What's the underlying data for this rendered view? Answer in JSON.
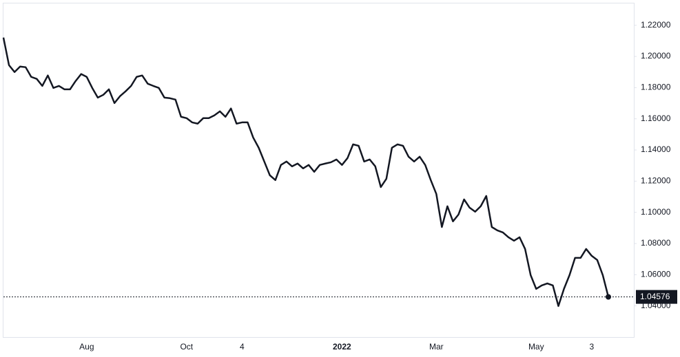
{
  "chart_data": {
    "type": "line",
    "categories": [
      null,
      null,
      null,
      null,
      null,
      null,
      null,
      null,
      null,
      null,
      null,
      null,
      null,
      null,
      null,
      "Aug",
      null,
      null,
      null,
      null,
      null,
      null,
      null,
      null,
      null,
      null,
      null,
      null,
      null,
      null,
      null,
      null,
      null,
      "Oct",
      null,
      null,
      null,
      null,
      null,
      null,
      null,
      null,
      null,
      "4",
      null,
      null,
      null,
      null,
      null,
      null,
      null,
      null,
      null,
      null,
      null,
      null,
      null,
      null,
      null,
      null,
      null,
      "2022",
      null,
      null,
      null,
      null,
      null,
      null,
      null,
      null,
      null,
      null,
      null,
      null,
      null,
      null,
      null,
      null,
      "Mar",
      null,
      null,
      null,
      null,
      null,
      null,
      null,
      null,
      null,
      null,
      null,
      null,
      null,
      null,
      null,
      null,
      null,
      "May",
      null,
      null,
      null,
      null,
      null,
      null,
      null,
      null,
      null,
      "3",
      null,
      null,
      null
    ],
    "series": [
      {
        "color": "#131722",
        "values": [
          1.2121,
          1.1944,
          1.19,
          1.1935,
          1.1931,
          1.1869,
          1.1856,
          1.1811,
          1.1878,
          1.1798,
          1.1811,
          1.1789,
          1.1789,
          1.1842,
          1.1887,
          1.1869,
          1.1798,
          1.1736,
          1.1754,
          1.1789,
          1.1701,
          1.1745,
          1.1776,
          1.1811,
          1.1869,
          1.1878,
          1.1825,
          1.1811,
          1.1798,
          1.1736,
          1.1732,
          1.1723,
          1.1613,
          1.1604,
          1.1577,
          1.1569,
          1.1604,
          1.1604,
          1.1622,
          1.1648,
          1.1613,
          1.1666,
          1.1569,
          1.1577,
          1.1577,
          1.148,
          1.1414,
          1.1326,
          1.1238,
          1.1207,
          1.1304,
          1.1326,
          1.1295,
          1.1313,
          1.1282,
          1.1304,
          1.126,
          1.1304,
          1.1313,
          1.1321,
          1.1339,
          1.1304,
          1.1348,
          1.1436,
          1.1427,
          1.1326,
          1.1339,
          1.1295,
          1.1162,
          1.1215,
          1.1414,
          1.1436,
          1.1427,
          1.1357,
          1.1326,
          1.1357,
          1.1304,
          1.1207,
          1.1118,
          1.0906,
          1.1039,
          1.0942,
          1.0986,
          1.1083,
          1.103,
          1.1004,
          1.1039,
          1.1105,
          1.0906,
          1.0884,
          1.0871,
          1.084,
          1.0818,
          1.084,
          1.0765,
          1.0597,
          1.0509,
          1.0531,
          1.0544,
          1.0531,
          1.0399,
          1.0509,
          1.0597,
          1.0708,
          1.0708,
          1.0765,
          1.0721,
          1.0694,
          1.0597,
          1.04576
        ]
      }
    ],
    "ylim": [
      1.02,
      1.234
    ],
    "yticks": [
      {
        "value": 1.04,
        "label": "1.04000"
      },
      {
        "value": 1.06,
        "label": "1.06000"
      },
      {
        "value": 1.08,
        "label": "1.08000"
      },
      {
        "value": 1.1,
        "label": "1.10000"
      },
      {
        "value": 1.12,
        "label": "1.12000"
      },
      {
        "value": 1.14,
        "label": "1.14000"
      },
      {
        "value": 1.16,
        "label": "1.16000"
      },
      {
        "value": 1.18,
        "label": "1.18000"
      },
      {
        "value": 1.2,
        "label": "1.20000"
      },
      {
        "value": 1.22,
        "label": "1.22000"
      }
    ],
    "grid": false
  }
}
